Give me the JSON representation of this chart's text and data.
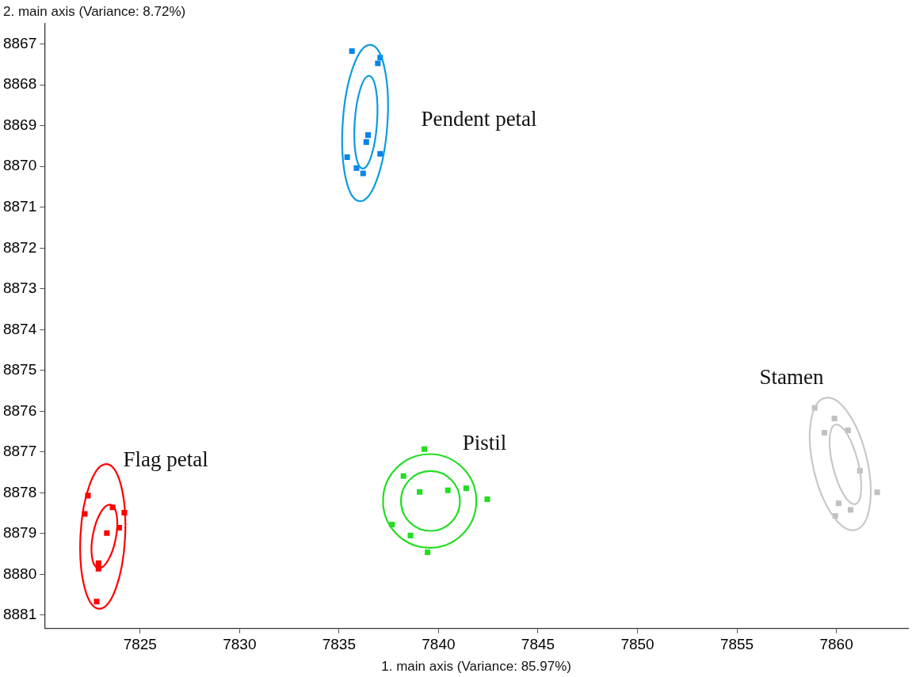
{
  "chart_data": {
    "type": "scatter",
    "xlabel": "1. main axis (Variance: 85.97%)",
    "ylabel": "2. main axis (Variance: 8.72%)",
    "xlim": [
      7820.2,
      7863.6
    ],
    "xticks": [
      7825,
      7830,
      7835,
      7840,
      7845,
      7850,
      7855,
      7860
    ],
    "ylim": [
      8881.33,
      8866.5
    ],
    "yticks": [
      8867,
      8868,
      8869,
      8870,
      8871,
      8872,
      8873,
      8874,
      8875,
      8876,
      8877,
      8878,
      8879,
      8880,
      8881
    ],
    "grid": false,
    "legend": false,
    "marker": "square",
    "series": [
      {
        "color": "#0a84e6",
        "x": [
          7835.65,
          7837.07,
          7836.95,
          7836.46,
          7836.37,
          7835.41,
          7837.07,
          7835.88,
          7836.21
        ],
        "values": [
          8867.17,
          8867.33,
          8867.47,
          8869.23,
          8869.4,
          8869.77,
          8869.69,
          8870.04,
          8870.17
        ]
      },
      {
        "color": "#ff0000",
        "x": [
          7822.38,
          7822.22,
          7823.62,
          7824.21,
          7823.95,
          7823.33,
          7822.91,
          7822.91,
          7822.82
        ],
        "values": [
          8878.07,
          8878.52,
          8878.36,
          8878.49,
          8878.86,
          8878.99,
          8879.73,
          8879.86,
          8880.67
        ]
      },
      {
        "color": "#22dd22",
        "x": [
          7839.29,
          7838.24,
          7839.05,
          7840.47,
          7841.39,
          7842.45,
          7837.66,
          7838.59,
          7839.45
        ],
        "values": [
          8876.93,
          8877.59,
          8877.98,
          8877.94,
          8877.89,
          8878.16,
          8878.78,
          8879.05,
          8879.46
        ]
      },
      {
        "color": "#c0c0c0",
        "x": [
          7858.91,
          7859.9,
          7859.4,
          7860.58,
          7861.18,
          7862.05,
          7860.11,
          7860.71,
          7859.94
        ],
        "values": [
          8875.92,
          8876.18,
          8876.53,
          8876.47,
          8877.46,
          8877.99,
          8878.26,
          8878.42,
          8878.57
        ]
      }
    ],
    "annotations": [
      "Pendent petal",
      "Flag petal",
      "Pistil",
      "Stamen"
    ]
  }
}
